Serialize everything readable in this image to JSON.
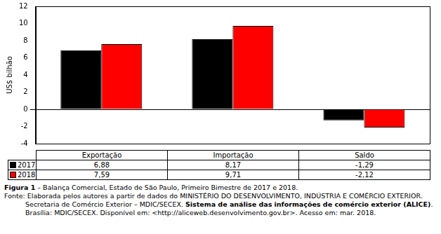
{
  "chart_data": {
    "type": "bar",
    "y_label": "US$ bilhão",
    "categories": [
      "Exportação",
      "Importação",
      "Saldo"
    ],
    "series": [
      {
        "name": "2017",
        "color": "#000000",
        "values": [
          6.88,
          8.17,
          -1.29
        ],
        "value_labels": [
          "6,88",
          "8,17",
          "-1,29"
        ]
      },
      {
        "name": "2018",
        "color": "#ff0000",
        "values": [
          7.59,
          9.71,
          -2.12
        ],
        "value_labels": [
          "7,59",
          "9,71",
          "-2,12"
        ]
      }
    ],
    "ylim": [
      -4,
      12
    ],
    "yticks": [
      -4,
      -2,
      0,
      2,
      4,
      6,
      8,
      10,
      12
    ],
    "grid": false,
    "caption": {
      "label": "Figura 1",
      "text": "– Balança Comercial, Estado de São Paulo, Primeiro Bimestre de 2017 e 2018."
    },
    "source": {
      "prefix": "Fonte: Elaborada pelos autores a partir de dados do MINISTÉRIO DO DESENVOLVIMENTO, INDÚSTRIA E COMÉRCIO EXTERIOR. Secretaria de Comércio Exterior – MDIC/SECEX. ",
      "emphasis": "Sistema de análise das informações de comércio exterior (ALICE)",
      "suffix": ". Brasília: MDIC/SECEX. Disponível em: <http://aliceweb.desenvolvimento.gov.br>. Acesso em: mar. 2018."
    }
  }
}
